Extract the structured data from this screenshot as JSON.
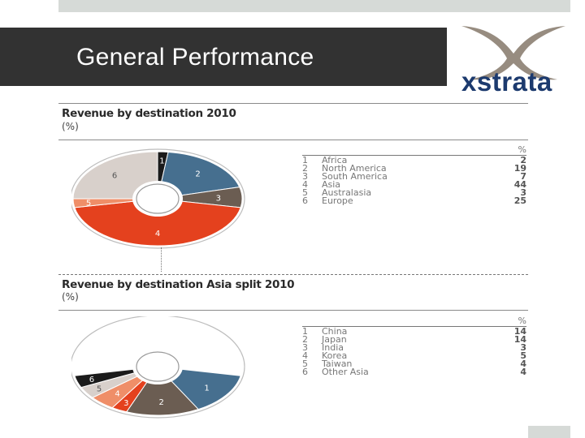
{
  "header": {
    "title": "General Performance"
  },
  "logo": {
    "text": "xstrata"
  },
  "chart_data": [
    {
      "type": "pie",
      "title": "Revenue by destination 2010",
      "unit": "(%)",
      "legend_unit": "%",
      "slices": [
        {
          "num": "1",
          "label": "Africa",
          "value": 2,
          "color": "#1b1b1b"
        },
        {
          "num": "2",
          "label": "North America",
          "value": 19,
          "color": "#466f8f"
        },
        {
          "num": "3",
          "label": "South America",
          "value": 7,
          "color": "#6b5d52"
        },
        {
          "num": "4",
          "label": "Asia",
          "value": 44,
          "color": "#e4411e"
        },
        {
          "num": "5",
          "label": "Australasia",
          "value": 3,
          "color": "#ef8e68"
        },
        {
          "num": "6",
          "label": "Europe",
          "value": 25,
          "color": "#d8d0cb"
        }
      ]
    },
    {
      "type": "pie",
      "title": "Revenue by destination Asia split 2010",
      "unit": "(%)",
      "legend_unit": "%",
      "remainder_color": "#ffffff",
      "slices": [
        {
          "num": "1",
          "label": "China",
          "value": 14,
          "color": "#466f8f"
        },
        {
          "num": "2",
          "label": "Japan",
          "value": 14,
          "color": "#6b5d52"
        },
        {
          "num": "3",
          "label": "India",
          "value": 3,
          "color": "#e4411e"
        },
        {
          "num": "4",
          "label": "Korea",
          "value": 5,
          "color": "#ef8e68"
        },
        {
          "num": "5",
          "label": "Taiwan",
          "value": 4,
          "color": "#d8d0cb"
        },
        {
          "num": "6",
          "label": "Other Asia",
          "value": 4,
          "color": "#1b1b1b"
        }
      ]
    }
  ]
}
